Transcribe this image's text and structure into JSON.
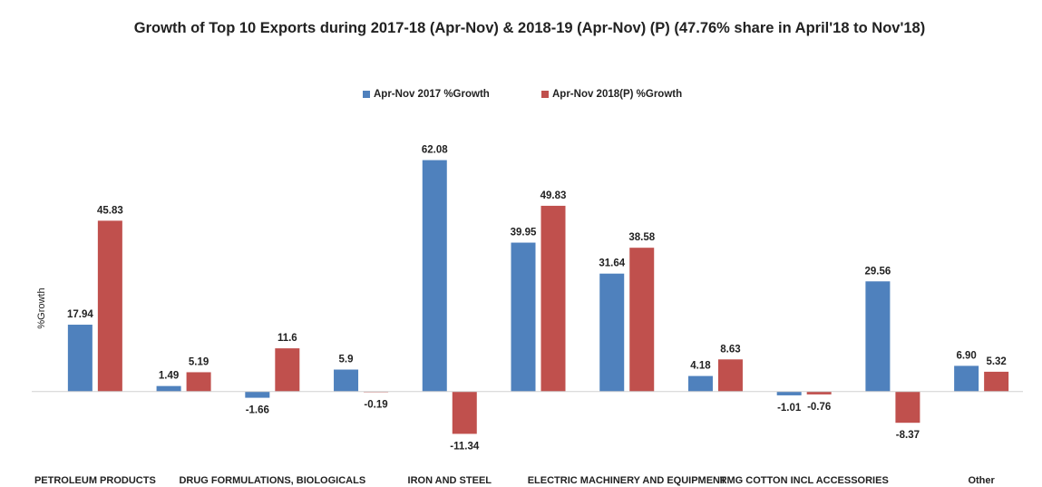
{
  "chart_data": {
    "type": "bar",
    "title": "Growth of Top 10 Exports during 2017-18 (Apr-Nov) & 2018-19 (Apr-Nov) (P) (47.76% share in April'18 to Nov'18)",
    "y_label": "%Growth",
    "categories": [
      "PETROLEUM PRODUCTS",
      null,
      "DRUG FORMULATIONS, BIOLOGICALS",
      null,
      "IRON AND STEEL",
      null,
      "ELECTRIC MACHINERY AND EQUIPMENT",
      null,
      "RMG COTTON INCL ACCESSORIES",
      null,
      "Other"
    ],
    "series": [
      {
        "name": "Apr-Nov  2017 %Growth",
        "color": "#4f81bd",
        "values": [
          17.94,
          1.49,
          -1.66,
          5.9,
          62.08,
          39.95,
          31.64,
          4.18,
          -1.01,
          29.56,
          6.9
        ],
        "value_labels": [
          "17.94",
          "1.49",
          "-1.66",
          "5.9",
          "62.08",
          "39.95",
          "31.64",
          "4.18",
          "-1.01",
          "29.56",
          "6.90"
        ]
      },
      {
        "name": "Apr-Nov  2018(P) %Growth",
        "color": "#c0504d",
        "values": [
          45.83,
          5.19,
          11.6,
          -0.19,
          -11.34,
          49.83,
          38.58,
          8.63,
          -0.76,
          -8.37,
          5.32
        ],
        "value_labels": [
          "45.83",
          "5.19",
          "11.6",
          "-0.19",
          "-11.34",
          "49.83",
          "38.58",
          "8.63",
          "-0.76",
          "-8.37",
          "5.32"
        ]
      }
    ],
    "ylim": [
      -20,
      70
    ],
    "legend": "top"
  }
}
